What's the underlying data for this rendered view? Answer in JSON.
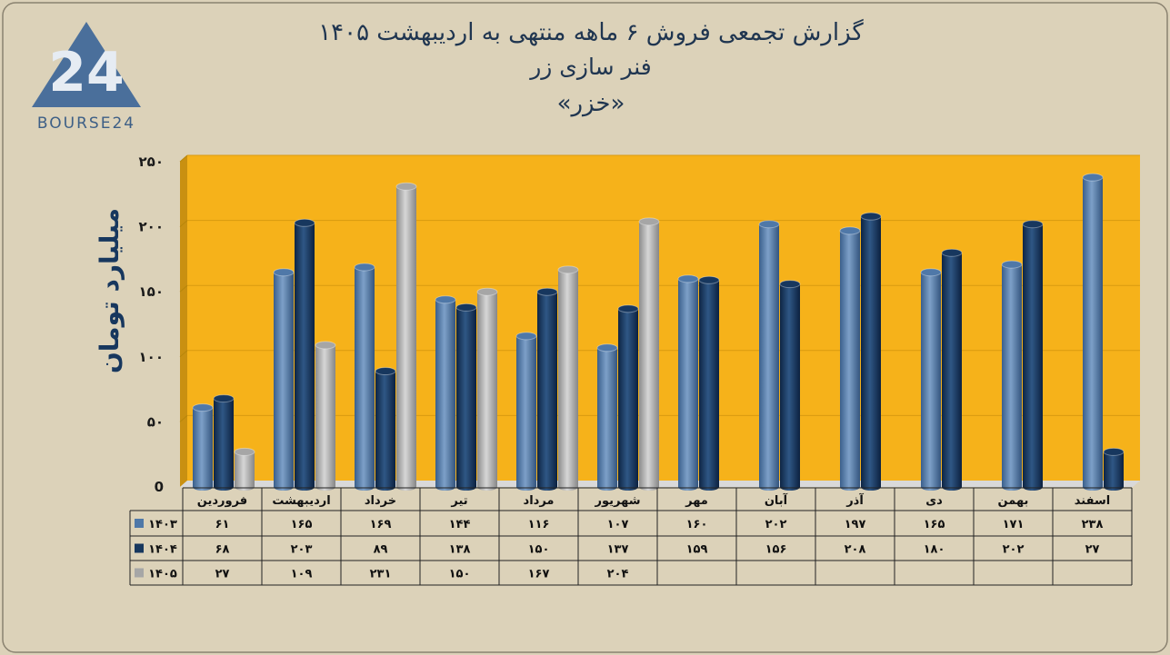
{
  "title": {
    "line1": "گزارش تجمعی فروش ۶ ماهه منتهی به اردیبهشت ۱۴۰۵",
    "line2": "فنر سازی زر",
    "line3": "«خزر»"
  },
  "logo": {
    "text": "BOURSE24",
    "mark": "24"
  },
  "colors": {
    "background": "#dcd2b9",
    "plot_area": "#f6b21a",
    "plot_wall": "#c99011",
    "series_1403": "#4f78a8",
    "series_1404": "#17375e",
    "series_1405": "#a6a6a6"
  },
  "chart_data": {
    "type": "bar",
    "ylabel": "میلیارد تومان",
    "ylim": [
      0,
      250
    ],
    "yticks": [
      0,
      50,
      100,
      150,
      200,
      250
    ],
    "ytick_labels": [
      "0",
      "۵۰",
      "۱۰۰",
      "۱۵۰",
      "۲۰۰",
      "۲۵۰"
    ],
    "categories": [
      "فروردین",
      "اردیبهشت",
      "خرداد",
      "تیر",
      "مرداد",
      "شهریور",
      "مهر",
      "آبان",
      "آذر",
      "دی",
      "بهمن",
      "اسفند"
    ],
    "series": [
      {
        "name": "۱۴۰۳",
        "values": [
          61,
          165,
          169,
          144,
          116,
          107,
          160,
          202,
          197,
          165,
          171,
          238
        ],
        "labels": [
          "۶۱",
          "۱۶۵",
          "۱۶۹",
          "۱۴۴",
          "۱۱۶",
          "۱۰۷",
          "۱۶۰",
          "۲۰۲",
          "۱۹۷",
          "۱۶۵",
          "۱۷۱",
          "۲۳۸"
        ]
      },
      {
        "name": "۱۴۰۴",
        "values": [
          68,
          203,
          89,
          138,
          150,
          137,
          159,
          156,
          208,
          180,
          202,
          27
        ],
        "labels": [
          "۶۸",
          "۲۰۳",
          "۸۹",
          "۱۳۸",
          "۱۵۰",
          "۱۳۷",
          "۱۵۹",
          "۱۵۶",
          "۲۰۸",
          "۱۸۰",
          "۲۰۲",
          "۲۷"
        ]
      },
      {
        "name": "۱۴۰۵",
        "values": [
          27,
          109,
          231,
          150,
          167,
          204,
          null,
          null,
          null,
          null,
          null,
          null
        ],
        "labels": [
          "۲۷",
          "۱۰۹",
          "۲۳۱",
          "۱۵۰",
          "۱۶۷",
          "۲۰۴",
          "",
          "",
          "",
          "",
          "",
          ""
        ]
      }
    ],
    "legend": "data-table",
    "grid": true
  }
}
